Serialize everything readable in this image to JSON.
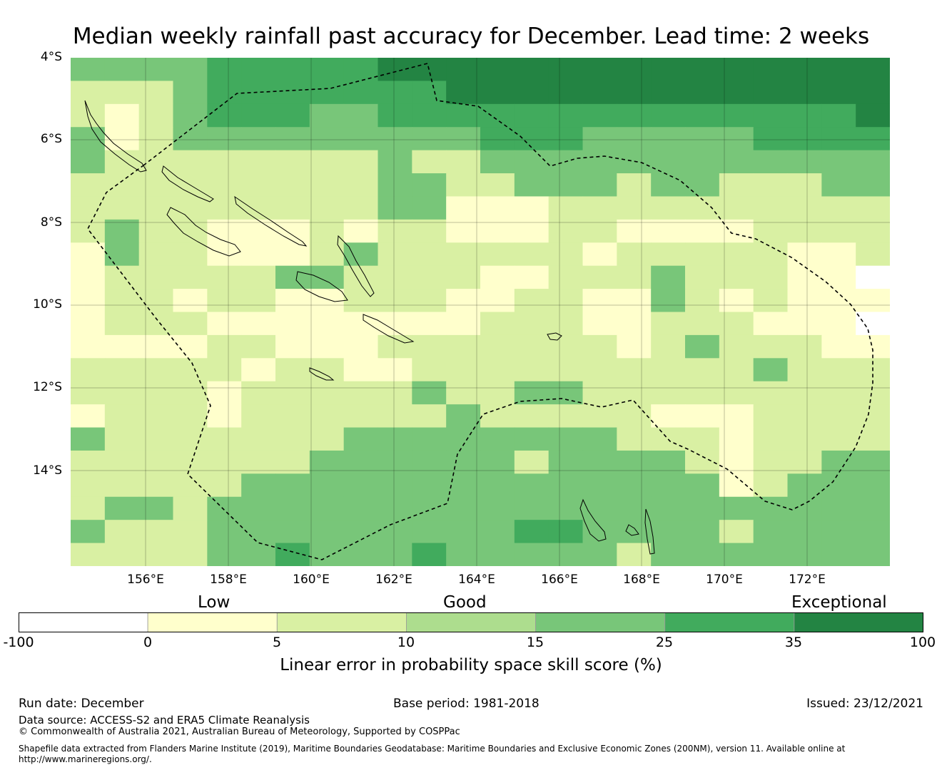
{
  "title": "Median weekly rainfall past accuracy for December. Lead time: 2 weeks",
  "map": {
    "lat_labels": [
      "4°S",
      "6°S",
      "8°S",
      "10°S",
      "12°S",
      "14°S"
    ],
    "lon_labels": [
      "156°E",
      "158°E",
      "160°E",
      "162°E",
      "164°E",
      "166°E",
      "168°E",
      "170°E",
      "172°E"
    ],
    "boundary_style": "dashed EEZ boundary",
    "colors": [
      "#ffffff",
      "#ffffcc",
      "#d9f0a3",
      "#addd8e",
      "#78c679",
      "#41ab5d",
      "#238443"
    ]
  },
  "colorbar": {
    "category_labels": [
      "Low",
      "Good",
      "Exceptional"
    ],
    "ticks": [
      "-100",
      "0",
      "5",
      "10",
      "15",
      "25",
      "35",
      "100"
    ],
    "label": "Linear error in probability space skill score (%)"
  },
  "footer": {
    "run_date": "Run date: December",
    "base_period": "Base period: 1981-2018",
    "issued": "Issued: 23/12/2021",
    "data_source": "Data source: ACCESS-S2 and ERA5 Climate Reanalysis",
    "copyright": "© Commonwealth of Australia 2021, Australian Bureau of Meteorology, Supported by COSPPac",
    "shapefile_line1": "Shapefile data extracted from Flanders Marine Institute (2019), Maritime Boundaries Geodatabase: Maritime Boundaries and Exclusive Economic Zones (200NM), version 11. Available online at",
    "shapefile_line2": "http://www.marineregions.org/."
  }
}
